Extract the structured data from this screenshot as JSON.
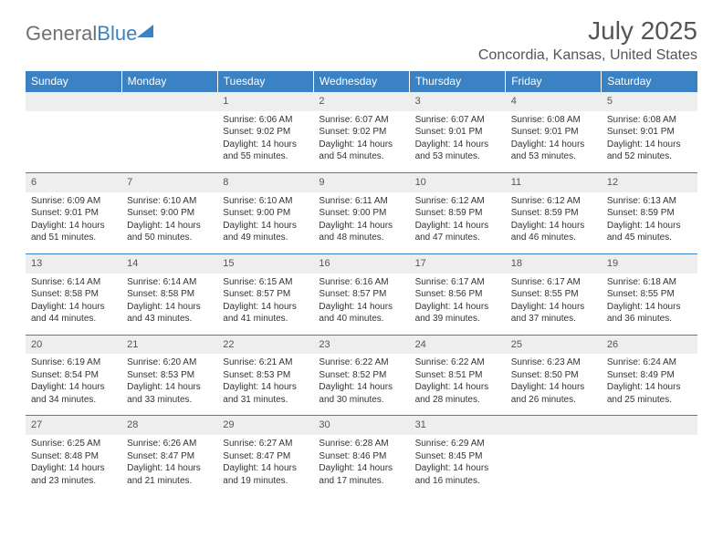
{
  "logo": {
    "word1": "General",
    "word2": "Blue"
  },
  "title": "July 2025",
  "location": "Concordia, Kansas, United States",
  "day_headers": [
    "Sunday",
    "Monday",
    "Tuesday",
    "Wednesday",
    "Thursday",
    "Friday",
    "Saturday"
  ],
  "colors": {
    "header_bg": "#3b82c4",
    "header_text": "#ffffff",
    "daynum_bg": "#eeeeee",
    "border": "#3b82c4",
    "text": "#333333",
    "logo_gray": "#707070",
    "logo_blue": "#3b82c4"
  },
  "typography": {
    "title_fontsize": 28,
    "location_fontsize": 16,
    "header_fontsize": 12,
    "daynum_fontsize": 11,
    "cell_fontsize": 10
  },
  "layout": {
    "columns": 7,
    "rows": 5,
    "col_width_pct": 14.28
  },
  "weeks": [
    [
      null,
      null,
      {
        "n": "1",
        "sr": "Sunrise: 6:06 AM",
        "ss": "Sunset: 9:02 PM",
        "dl": "Daylight: 14 hours and 55 minutes."
      },
      {
        "n": "2",
        "sr": "Sunrise: 6:07 AM",
        "ss": "Sunset: 9:02 PM",
        "dl": "Daylight: 14 hours and 54 minutes."
      },
      {
        "n": "3",
        "sr": "Sunrise: 6:07 AM",
        "ss": "Sunset: 9:01 PM",
        "dl": "Daylight: 14 hours and 53 minutes."
      },
      {
        "n": "4",
        "sr": "Sunrise: 6:08 AM",
        "ss": "Sunset: 9:01 PM",
        "dl": "Daylight: 14 hours and 53 minutes."
      },
      {
        "n": "5",
        "sr": "Sunrise: 6:08 AM",
        "ss": "Sunset: 9:01 PM",
        "dl": "Daylight: 14 hours and 52 minutes."
      }
    ],
    [
      {
        "n": "6",
        "sr": "Sunrise: 6:09 AM",
        "ss": "Sunset: 9:01 PM",
        "dl": "Daylight: 14 hours and 51 minutes."
      },
      {
        "n": "7",
        "sr": "Sunrise: 6:10 AM",
        "ss": "Sunset: 9:00 PM",
        "dl": "Daylight: 14 hours and 50 minutes."
      },
      {
        "n": "8",
        "sr": "Sunrise: 6:10 AM",
        "ss": "Sunset: 9:00 PM",
        "dl": "Daylight: 14 hours and 49 minutes."
      },
      {
        "n": "9",
        "sr": "Sunrise: 6:11 AM",
        "ss": "Sunset: 9:00 PM",
        "dl": "Daylight: 14 hours and 48 minutes."
      },
      {
        "n": "10",
        "sr": "Sunrise: 6:12 AM",
        "ss": "Sunset: 8:59 PM",
        "dl": "Daylight: 14 hours and 47 minutes."
      },
      {
        "n": "11",
        "sr": "Sunrise: 6:12 AM",
        "ss": "Sunset: 8:59 PM",
        "dl": "Daylight: 14 hours and 46 minutes."
      },
      {
        "n": "12",
        "sr": "Sunrise: 6:13 AM",
        "ss": "Sunset: 8:59 PM",
        "dl": "Daylight: 14 hours and 45 minutes."
      }
    ],
    [
      {
        "n": "13",
        "sr": "Sunrise: 6:14 AM",
        "ss": "Sunset: 8:58 PM",
        "dl": "Daylight: 14 hours and 44 minutes."
      },
      {
        "n": "14",
        "sr": "Sunrise: 6:14 AM",
        "ss": "Sunset: 8:58 PM",
        "dl": "Daylight: 14 hours and 43 minutes."
      },
      {
        "n": "15",
        "sr": "Sunrise: 6:15 AM",
        "ss": "Sunset: 8:57 PM",
        "dl": "Daylight: 14 hours and 41 minutes."
      },
      {
        "n": "16",
        "sr": "Sunrise: 6:16 AM",
        "ss": "Sunset: 8:57 PM",
        "dl": "Daylight: 14 hours and 40 minutes."
      },
      {
        "n": "17",
        "sr": "Sunrise: 6:17 AM",
        "ss": "Sunset: 8:56 PM",
        "dl": "Daylight: 14 hours and 39 minutes."
      },
      {
        "n": "18",
        "sr": "Sunrise: 6:17 AM",
        "ss": "Sunset: 8:55 PM",
        "dl": "Daylight: 14 hours and 37 minutes."
      },
      {
        "n": "19",
        "sr": "Sunrise: 6:18 AM",
        "ss": "Sunset: 8:55 PM",
        "dl": "Daylight: 14 hours and 36 minutes."
      }
    ],
    [
      {
        "n": "20",
        "sr": "Sunrise: 6:19 AM",
        "ss": "Sunset: 8:54 PM",
        "dl": "Daylight: 14 hours and 34 minutes."
      },
      {
        "n": "21",
        "sr": "Sunrise: 6:20 AM",
        "ss": "Sunset: 8:53 PM",
        "dl": "Daylight: 14 hours and 33 minutes."
      },
      {
        "n": "22",
        "sr": "Sunrise: 6:21 AM",
        "ss": "Sunset: 8:53 PM",
        "dl": "Daylight: 14 hours and 31 minutes."
      },
      {
        "n": "23",
        "sr": "Sunrise: 6:22 AM",
        "ss": "Sunset: 8:52 PM",
        "dl": "Daylight: 14 hours and 30 minutes."
      },
      {
        "n": "24",
        "sr": "Sunrise: 6:22 AM",
        "ss": "Sunset: 8:51 PM",
        "dl": "Daylight: 14 hours and 28 minutes."
      },
      {
        "n": "25",
        "sr": "Sunrise: 6:23 AM",
        "ss": "Sunset: 8:50 PM",
        "dl": "Daylight: 14 hours and 26 minutes."
      },
      {
        "n": "26",
        "sr": "Sunrise: 6:24 AM",
        "ss": "Sunset: 8:49 PM",
        "dl": "Daylight: 14 hours and 25 minutes."
      }
    ],
    [
      {
        "n": "27",
        "sr": "Sunrise: 6:25 AM",
        "ss": "Sunset: 8:48 PM",
        "dl": "Daylight: 14 hours and 23 minutes."
      },
      {
        "n": "28",
        "sr": "Sunrise: 6:26 AM",
        "ss": "Sunset: 8:47 PM",
        "dl": "Daylight: 14 hours and 21 minutes."
      },
      {
        "n": "29",
        "sr": "Sunrise: 6:27 AM",
        "ss": "Sunset: 8:47 PM",
        "dl": "Daylight: 14 hours and 19 minutes."
      },
      {
        "n": "30",
        "sr": "Sunrise: 6:28 AM",
        "ss": "Sunset: 8:46 PM",
        "dl": "Daylight: 14 hours and 17 minutes."
      },
      {
        "n": "31",
        "sr": "Sunrise: 6:29 AM",
        "ss": "Sunset: 8:45 PM",
        "dl": "Daylight: 14 hours and 16 minutes."
      },
      null,
      null
    ]
  ]
}
